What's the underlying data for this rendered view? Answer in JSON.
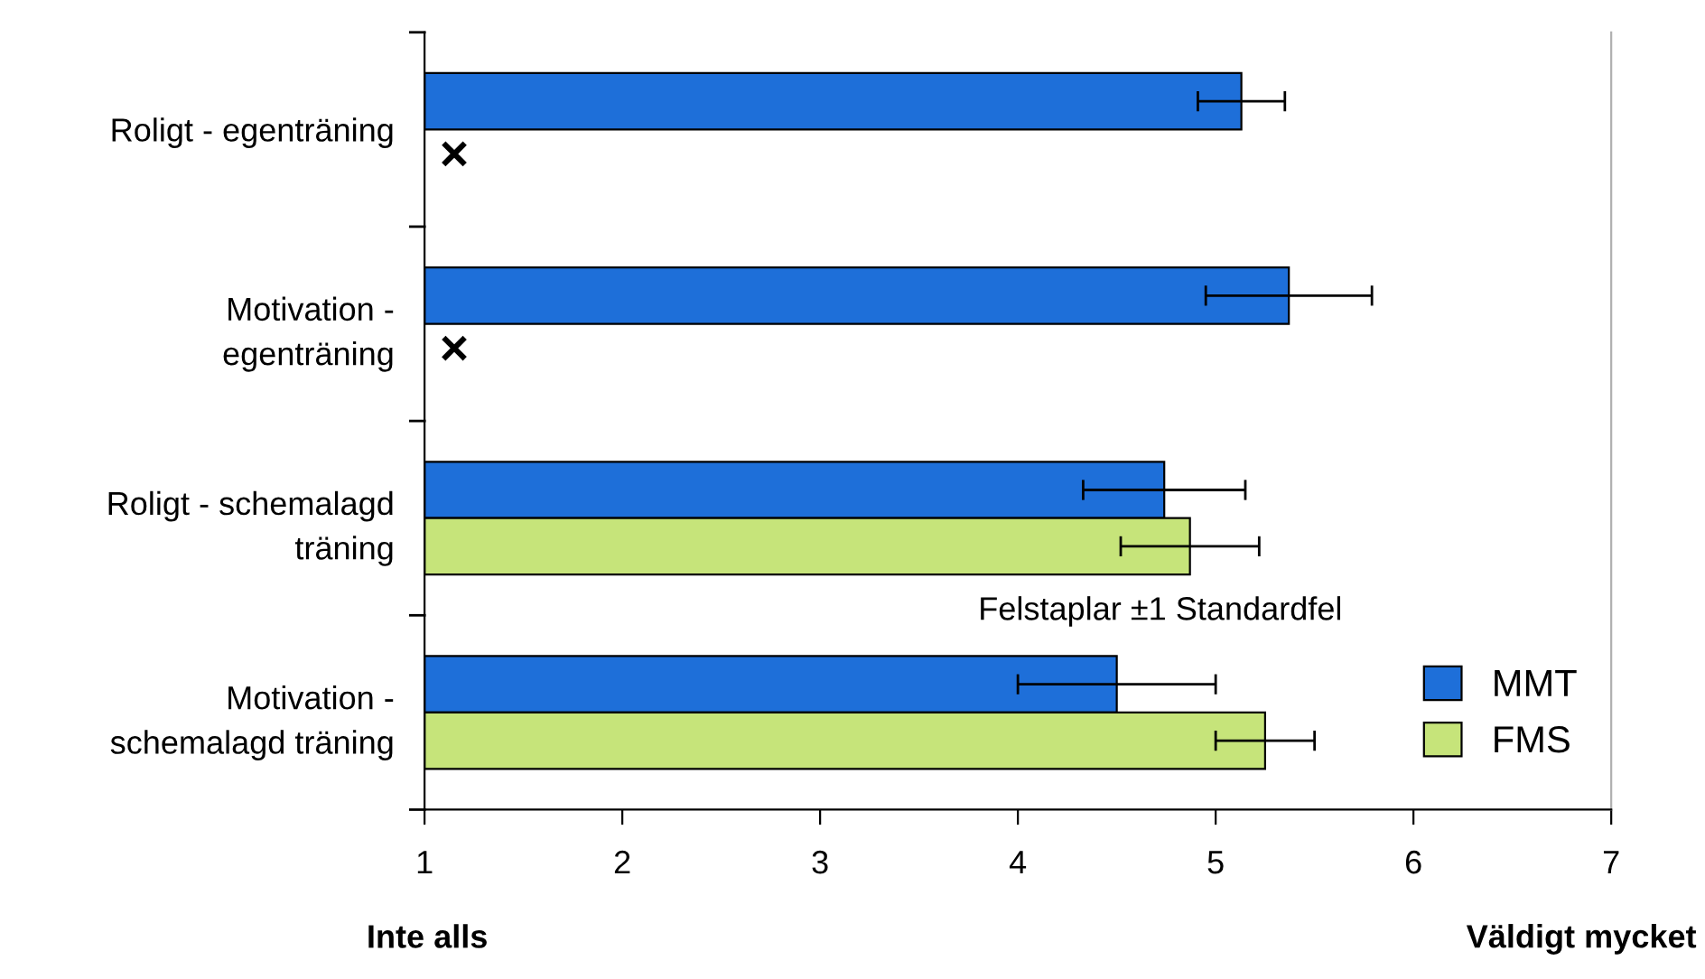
{
  "chart_data": {
    "type": "bar",
    "orientation": "horizontal",
    "categories": [
      "Roligt - egenträning",
      "Motivation -\negenträning",
      "Roligt - schemalagd\nträning",
      "Motivation -\nschemalagd träning"
    ],
    "series": [
      {
        "name": "MMT",
        "color": "#1e6fd9",
        "values": [
          5.13,
          5.37,
          4.74,
          4.5
        ],
        "errors": [
          0.22,
          0.42,
          0.41,
          0.5
        ]
      },
      {
        "name": "FMS",
        "color": "#c6e47a",
        "values": [
          null,
          null,
          4.87,
          5.25
        ],
        "errors": [
          null,
          null,
          0.35,
          0.25
        ]
      }
    ],
    "xlim": [
      1,
      7
    ],
    "xticks": [
      1,
      2,
      3,
      4,
      5,
      6,
      7
    ],
    "grid": false,
    "legend": "bottom right",
    "annotations": [
      "×",
      "×",
      "Felstaplar ±1 Standardfel",
      "Inte alls",
      "Väldigt mycket"
    ]
  }
}
